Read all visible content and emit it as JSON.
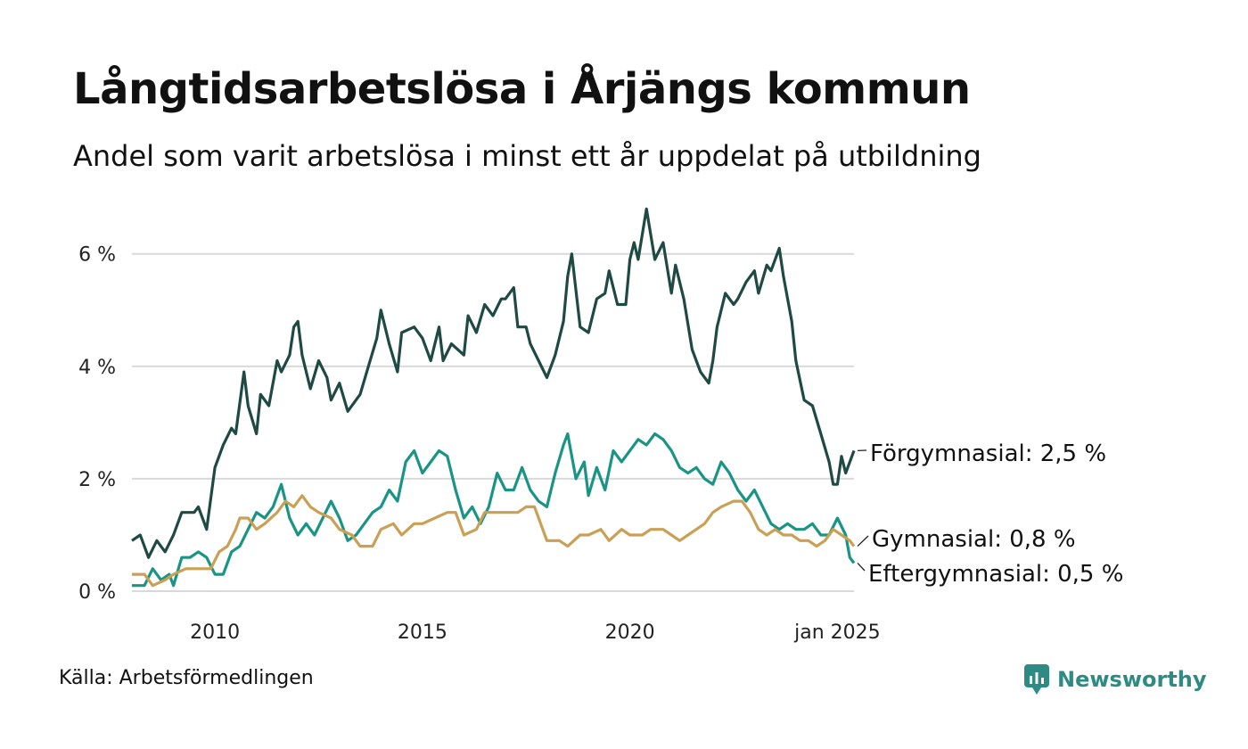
{
  "chart_data": {
    "type": "line",
    "title": "Långtidsarbetslösa i Årjängs kommun",
    "subtitle": "Andel som varit arbetslösa i minst ett år uppdelat på utbildning",
    "source": "Källa: Arbetsförmedlingen",
    "brand": "Newsworthy",
    "x_ticks": [
      {
        "label": "2010",
        "t": 2010.0
      },
      {
        "label": "2015",
        "t": 2015.0
      },
      {
        "label": "2020",
        "t": 2020.0
      },
      {
        "label": "jan 2025",
        "t": 2025.0
      }
    ],
    "y_ticks": [
      {
        "label": "0 %",
        "v": 0
      },
      {
        "label": "2 %",
        "v": 2
      },
      {
        "label": "4 %",
        "v": 4
      },
      {
        "label": "6 %",
        "v": 6
      }
    ],
    "xlim": [
      2008.0,
      2025.0
    ],
    "ylim": [
      0,
      6.9
    ],
    "colors": {
      "forgymnasial": "#1f4a44",
      "gymnasial": "#c9a055",
      "eftergymnasial": "#1a9484",
      "grid": "#d9d9d9",
      "brand": "#2e8b84"
    },
    "series": [
      {
        "key": "forgymnasial",
        "name": "Förgymnasial",
        "end_label": "Förgymnasial: 2,5 %",
        "points": [
          [
            2008.0,
            0.9
          ],
          [
            2008.2,
            1.0
          ],
          [
            2008.4,
            0.6
          ],
          [
            2008.6,
            0.9
          ],
          [
            2008.8,
            0.7
          ],
          [
            2009.0,
            1.0
          ],
          [
            2009.2,
            1.4
          ],
          [
            2009.5,
            1.4
          ],
          [
            2009.6,
            1.5
          ],
          [
            2009.8,
            1.1
          ],
          [
            2010.0,
            2.2
          ],
          [
            2010.2,
            2.6
          ],
          [
            2010.4,
            2.9
          ],
          [
            2010.5,
            2.8
          ],
          [
            2010.7,
            3.9
          ],
          [
            2010.8,
            3.3
          ],
          [
            2011.0,
            2.8
          ],
          [
            2011.1,
            3.5
          ],
          [
            2011.3,
            3.3
          ],
          [
            2011.5,
            4.1
          ],
          [
            2011.6,
            3.9
          ],
          [
            2011.8,
            4.2
          ],
          [
            2011.9,
            4.7
          ],
          [
            2012.0,
            4.8
          ],
          [
            2012.1,
            4.2
          ],
          [
            2012.3,
            3.6
          ],
          [
            2012.5,
            4.1
          ],
          [
            2012.7,
            3.8
          ],
          [
            2012.8,
            3.4
          ],
          [
            2013.0,
            3.7
          ],
          [
            2013.2,
            3.2
          ],
          [
            2013.5,
            3.5
          ],
          [
            2013.7,
            4.0
          ],
          [
            2013.9,
            4.5
          ],
          [
            2014.0,
            5.0
          ],
          [
            2014.2,
            4.4
          ],
          [
            2014.4,
            3.9
          ],
          [
            2014.5,
            4.6
          ],
          [
            2014.8,
            4.7
          ],
          [
            2015.0,
            4.5
          ],
          [
            2015.2,
            4.1
          ],
          [
            2015.4,
            4.7
          ],
          [
            2015.5,
            4.1
          ],
          [
            2015.7,
            4.4
          ],
          [
            2016.0,
            4.2
          ],
          [
            2016.1,
            4.9
          ],
          [
            2016.3,
            4.6
          ],
          [
            2016.5,
            5.1
          ],
          [
            2016.7,
            4.9
          ],
          [
            2016.9,
            5.2
          ],
          [
            2017.0,
            5.2
          ],
          [
            2017.2,
            5.4
          ],
          [
            2017.3,
            4.7
          ],
          [
            2017.5,
            4.7
          ],
          [
            2017.6,
            4.4
          ],
          [
            2017.8,
            4.1
          ],
          [
            2018.0,
            3.8
          ],
          [
            2018.2,
            4.2
          ],
          [
            2018.4,
            4.8
          ],
          [
            2018.5,
            5.6
          ],
          [
            2018.6,
            6.0
          ],
          [
            2018.8,
            4.7
          ],
          [
            2019.0,
            4.6
          ],
          [
            2019.2,
            5.2
          ],
          [
            2019.4,
            5.3
          ],
          [
            2019.5,
            5.7
          ],
          [
            2019.7,
            5.1
          ],
          [
            2019.9,
            5.1
          ],
          [
            2020.0,
            5.9
          ],
          [
            2020.1,
            6.2
          ],
          [
            2020.2,
            5.9
          ],
          [
            2020.4,
            6.8
          ],
          [
            2020.6,
            5.9
          ],
          [
            2020.8,
            6.2
          ],
          [
            2021.0,
            5.3
          ],
          [
            2021.1,
            5.8
          ],
          [
            2021.3,
            5.2
          ],
          [
            2021.5,
            4.3
          ],
          [
            2021.7,
            3.9
          ],
          [
            2021.9,
            3.7
          ],
          [
            2022.0,
            4.1
          ],
          [
            2022.1,
            4.7
          ],
          [
            2022.3,
            5.3
          ],
          [
            2022.5,
            5.1
          ],
          [
            2022.6,
            5.2
          ],
          [
            2022.8,
            5.5
          ],
          [
            2023.0,
            5.7
          ],
          [
            2023.1,
            5.3
          ],
          [
            2023.3,
            5.8
          ],
          [
            2023.4,
            5.7
          ],
          [
            2023.6,
            6.1
          ],
          [
            2023.7,
            5.6
          ],
          [
            2023.9,
            4.8
          ],
          [
            2024.0,
            4.1
          ],
          [
            2024.2,
            3.4
          ],
          [
            2024.4,
            3.3
          ],
          [
            2024.6,
            2.8
          ],
          [
            2024.8,
            2.3
          ],
          [
            2024.9,
            1.9
          ],
          [
            2025.0,
            1.9
          ],
          [
            2025.1,
            2.4
          ],
          [
            2025.2,
            2.1
          ],
          [
            2025.4,
            2.5
          ]
        ]
      },
      {
        "key": "gymnasial",
        "name": "Gymnasial",
        "end_label": "Gymnasial: 0,8 %",
        "points": [
          [
            2008.0,
            0.3
          ],
          [
            2008.3,
            0.3
          ],
          [
            2008.5,
            0.1
          ],
          [
            2008.8,
            0.2
          ],
          [
            2009.0,
            0.3
          ],
          [
            2009.3,
            0.4
          ],
          [
            2009.6,
            0.4
          ],
          [
            2009.9,
            0.4
          ],
          [
            2010.1,
            0.7
          ],
          [
            2010.3,
            0.8
          ],
          [
            2010.5,
            1.1
          ],
          [
            2010.6,
            1.3
          ],
          [
            2010.8,
            1.3
          ],
          [
            2011.0,
            1.1
          ],
          [
            2011.2,
            1.2
          ],
          [
            2011.5,
            1.4
          ],
          [
            2011.7,
            1.6
          ],
          [
            2011.9,
            1.5
          ],
          [
            2012.1,
            1.7
          ],
          [
            2012.3,
            1.5
          ],
          [
            2012.5,
            1.4
          ],
          [
            2012.8,
            1.3
          ],
          [
            2013.0,
            1.1
          ],
          [
            2013.3,
            1.0
          ],
          [
            2013.5,
            0.8
          ],
          [
            2013.8,
            0.8
          ],
          [
            2014.0,
            1.1
          ],
          [
            2014.3,
            1.2
          ],
          [
            2014.5,
            1.0
          ],
          [
            2014.8,
            1.2
          ],
          [
            2015.0,
            1.2
          ],
          [
            2015.3,
            1.3
          ],
          [
            2015.6,
            1.4
          ],
          [
            2015.8,
            1.4
          ],
          [
            2016.0,
            1.0
          ],
          [
            2016.3,
            1.1
          ],
          [
            2016.5,
            1.4
          ],
          [
            2016.8,
            1.4
          ],
          [
            2017.0,
            1.4
          ],
          [
            2017.3,
            1.4
          ],
          [
            2017.5,
            1.5
          ],
          [
            2017.7,
            1.5
          ],
          [
            2018.0,
            0.9
          ],
          [
            2018.3,
            0.9
          ],
          [
            2018.5,
            0.8
          ],
          [
            2018.8,
            1.0
          ],
          [
            2019.0,
            1.0
          ],
          [
            2019.3,
            1.1
          ],
          [
            2019.5,
            0.9
          ],
          [
            2019.8,
            1.1
          ],
          [
            2020.0,
            1.0
          ],
          [
            2020.3,
            1.0
          ],
          [
            2020.5,
            1.1
          ],
          [
            2020.8,
            1.1
          ],
          [
            2021.0,
            1.0
          ],
          [
            2021.2,
            0.9
          ],
          [
            2021.4,
            1.0
          ],
          [
            2021.6,
            1.1
          ],
          [
            2021.8,
            1.2
          ],
          [
            2022.0,
            1.4
          ],
          [
            2022.2,
            1.5
          ],
          [
            2022.5,
            1.6
          ],
          [
            2022.7,
            1.6
          ],
          [
            2022.9,
            1.4
          ],
          [
            2023.1,
            1.1
          ],
          [
            2023.3,
            1.0
          ],
          [
            2023.5,
            1.1
          ],
          [
            2023.7,
            1.0
          ],
          [
            2023.9,
            1.0
          ],
          [
            2024.1,
            0.9
          ],
          [
            2024.3,
            0.9
          ],
          [
            2024.5,
            0.8
          ],
          [
            2024.7,
            0.9
          ],
          [
            2024.9,
            1.1
          ],
          [
            2025.1,
            1.0
          ],
          [
            2025.3,
            0.9
          ],
          [
            2025.4,
            0.8
          ]
        ]
      },
      {
        "key": "eftergymnasial",
        "name": "Eftergymnasial",
        "end_label": "Eftergymnasial: 0,5 %",
        "points": [
          [
            2008.0,
            0.1
          ],
          [
            2008.3,
            0.1
          ],
          [
            2008.5,
            0.4
          ],
          [
            2008.7,
            0.2
          ],
          [
            2008.9,
            0.3
          ],
          [
            2009.0,
            0.1
          ],
          [
            2009.2,
            0.6
          ],
          [
            2009.4,
            0.6
          ],
          [
            2009.6,
            0.7
          ],
          [
            2009.8,
            0.6
          ],
          [
            2010.0,
            0.3
          ],
          [
            2010.2,
            0.3
          ],
          [
            2010.4,
            0.7
          ],
          [
            2010.6,
            0.8
          ],
          [
            2010.8,
            1.1
          ],
          [
            2011.0,
            1.4
          ],
          [
            2011.2,
            1.3
          ],
          [
            2011.4,
            1.5
          ],
          [
            2011.6,
            1.9
          ],
          [
            2011.8,
            1.3
          ],
          [
            2012.0,
            1.0
          ],
          [
            2012.2,
            1.2
          ],
          [
            2012.4,
            1.0
          ],
          [
            2012.6,
            1.3
          ],
          [
            2012.8,
            1.6
          ],
          [
            2013.0,
            1.3
          ],
          [
            2013.2,
            0.9
          ],
          [
            2013.4,
            1.0
          ],
          [
            2013.6,
            1.2
          ],
          [
            2013.8,
            1.4
          ],
          [
            2014.0,
            1.5
          ],
          [
            2014.2,
            1.8
          ],
          [
            2014.4,
            1.6
          ],
          [
            2014.6,
            2.3
          ],
          [
            2014.8,
            2.5
          ],
          [
            2015.0,
            2.1
          ],
          [
            2015.2,
            2.3
          ],
          [
            2015.4,
            2.5
          ],
          [
            2015.6,
            2.4
          ],
          [
            2015.8,
            1.8
          ],
          [
            2016.0,
            1.3
          ],
          [
            2016.2,
            1.5
          ],
          [
            2016.4,
            1.2
          ],
          [
            2016.6,
            1.5
          ],
          [
            2016.8,
            2.1
          ],
          [
            2017.0,
            1.8
          ],
          [
            2017.2,
            1.8
          ],
          [
            2017.4,
            2.2
          ],
          [
            2017.6,
            1.8
          ],
          [
            2017.8,
            1.6
          ],
          [
            2018.0,
            1.5
          ],
          [
            2018.2,
            2.1
          ],
          [
            2018.4,
            2.6
          ],
          [
            2018.5,
            2.8
          ],
          [
            2018.7,
            2.0
          ],
          [
            2018.9,
            2.3
          ],
          [
            2019.0,
            1.7
          ],
          [
            2019.2,
            2.2
          ],
          [
            2019.4,
            1.8
          ],
          [
            2019.6,
            2.5
          ],
          [
            2019.8,
            2.3
          ],
          [
            2020.0,
            2.5
          ],
          [
            2020.2,
            2.7
          ],
          [
            2020.4,
            2.6
          ],
          [
            2020.6,
            2.8
          ],
          [
            2020.8,
            2.7
          ],
          [
            2021.0,
            2.5
          ],
          [
            2021.2,
            2.2
          ],
          [
            2021.4,
            2.1
          ],
          [
            2021.6,
            2.2
          ],
          [
            2021.8,
            2.0
          ],
          [
            2022.0,
            1.9
          ],
          [
            2022.2,
            2.3
          ],
          [
            2022.4,
            2.1
          ],
          [
            2022.6,
            1.8
          ],
          [
            2022.8,
            1.6
          ],
          [
            2023.0,
            1.8
          ],
          [
            2023.2,
            1.5
          ],
          [
            2023.4,
            1.2
          ],
          [
            2023.6,
            1.1
          ],
          [
            2023.8,
            1.2
          ],
          [
            2024.0,
            1.1
          ],
          [
            2024.2,
            1.1
          ],
          [
            2024.4,
            1.2
          ],
          [
            2024.6,
            1.0
          ],
          [
            2024.8,
            1.0
          ],
          [
            2025.0,
            1.3
          ],
          [
            2025.2,
            1.0
          ],
          [
            2025.3,
            0.6
          ],
          [
            2025.4,
            0.5
          ]
        ]
      }
    ]
  }
}
